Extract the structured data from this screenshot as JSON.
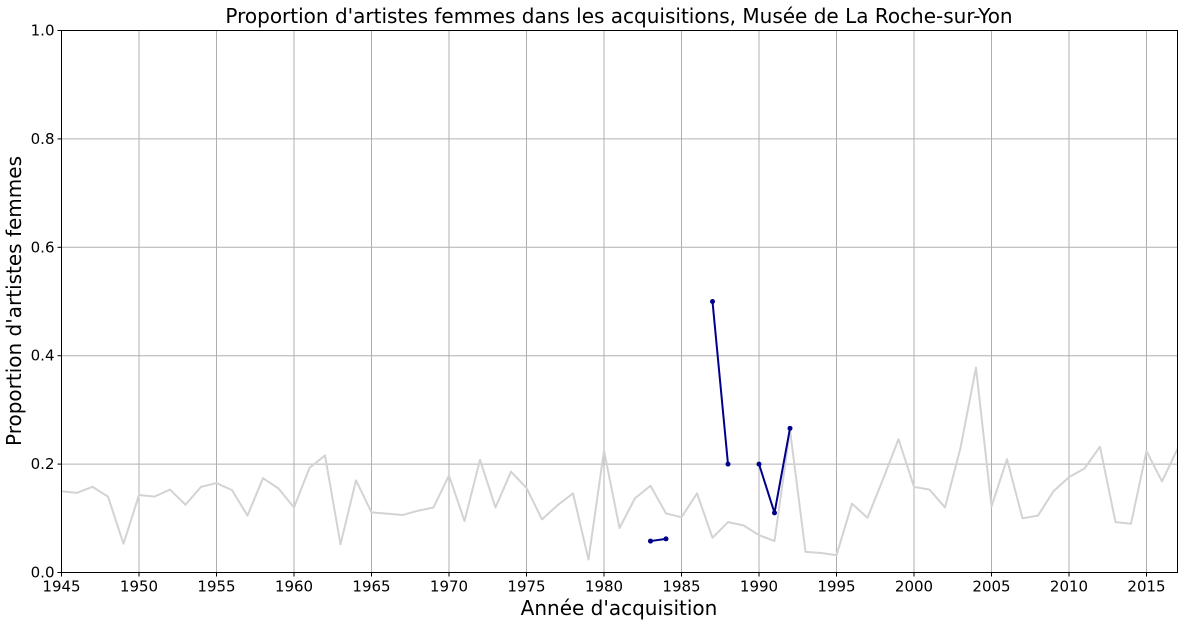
{
  "chart_data": {
    "type": "line",
    "title": "Proportion d'artistes femmes dans les acquisitions, Musée de La Roche-sur-Yon",
    "xlabel": "Année d'acquisition",
    "ylabel": "Proportion d'artistes femmes",
    "xlim": [
      1945,
      2017
    ],
    "ylim": [
      0,
      1
    ],
    "grid": true,
    "x_ticks": [
      1945,
      1950,
      1955,
      1960,
      1965,
      1970,
      1975,
      1980,
      1985,
      1990,
      1995,
      2000,
      2005,
      2010,
      2015
    ],
    "y_ticks": [
      0.0,
      0.2,
      0.4,
      0.6,
      0.8,
      1.0
    ],
    "y_tick_labels": [
      "0.0",
      "0.2",
      "0.4",
      "0.6",
      "0.8",
      "1.0"
    ],
    "series": [
      {
        "color": "#d3d3d3",
        "marker": false,
        "points": [
          [
            1945,
            0.15
          ],
          [
            1946,
            0.147
          ],
          [
            1947,
            0.158
          ],
          [
            1948,
            0.14
          ],
          [
            1949,
            0.053
          ],
          [
            1950,
            0.143
          ],
          [
            1951,
            0.14
          ],
          [
            1952,
            0.153
          ],
          [
            1953,
            0.125
          ],
          [
            1954,
            0.158
          ],
          [
            1955,
            0.165
          ],
          [
            1956,
            0.152
          ],
          [
            1957,
            0.105
          ],
          [
            1958,
            0.174
          ],
          [
            1959,
            0.155
          ],
          [
            1960,
            0.12
          ],
          [
            1961,
            0.193
          ],
          [
            1962,
            0.216
          ],
          [
            1963,
            0.052
          ],
          [
            1964,
            0.17
          ],
          [
            1965,
            0.111
          ],
          [
            1967,
            0.106
          ],
          [
            1968,
            0.114
          ],
          [
            1969,
            0.12
          ],
          [
            1970,
            0.179
          ],
          [
            1971,
            0.095
          ],
          [
            1972,
            0.208
          ],
          [
            1973,
            0.12
          ],
          [
            1974,
            0.186
          ],
          [
            1975,
            0.156
          ],
          [
            1976,
            0.098
          ],
          [
            1977,
            0.124
          ],
          [
            1978,
            0.146
          ],
          [
            1979,
            0.024
          ],
          [
            1980,
            0.225
          ],
          [
            1981,
            0.082
          ],
          [
            1982,
            0.137
          ],
          [
            1983,
            0.16
          ],
          [
            1984,
            0.109
          ],
          [
            1985,
            0.102
          ],
          [
            1986,
            0.146
          ],
          [
            1987,
            0.064
          ],
          [
            1988,
            0.093
          ],
          [
            1989,
            0.087
          ],
          [
            1990,
            0.069
          ],
          [
            1991,
            0.058
          ],
          [
            1992,
            0.263
          ],
          [
            1993,
            0.038
          ],
          [
            1994,
            0.036
          ],
          [
            1995,
            0.032
          ],
          [
            1996,
            0.127
          ],
          [
            1997,
            0.101
          ],
          [
            1998,
            0.172
          ],
          [
            1999,
            0.246
          ],
          [
            2000,
            0.158
          ],
          [
            2001,
            0.153
          ],
          [
            2002,
            0.12
          ],
          [
            2003,
            0.23
          ],
          [
            2004,
            0.378
          ],
          [
            2005,
            0.122
          ],
          [
            2006,
            0.209
          ],
          [
            2007,
            0.1
          ],
          [
            2008,
            0.105
          ],
          [
            2009,
            0.15
          ],
          [
            2010,
            0.176
          ],
          [
            2011,
            0.192
          ],
          [
            2012,
            0.232
          ],
          [
            2013,
            0.093
          ],
          [
            2014,
            0.09
          ],
          [
            2015,
            0.224
          ],
          [
            2016,
            0.168
          ],
          [
            2017,
            0.228
          ]
        ]
      },
      {
        "color": "#00008b",
        "marker": true,
        "segments": [
          [
            [
              1983,
              0.058
            ],
            [
              1984,
              0.062
            ]
          ],
          [
            [
              1987,
              0.5
            ],
            [
              1988,
              0.2
            ]
          ],
          [
            [
              1990,
              0.2
            ],
            [
              1991,
              0.11
            ],
            [
              1992,
              0.266
            ]
          ]
        ]
      }
    ]
  }
}
